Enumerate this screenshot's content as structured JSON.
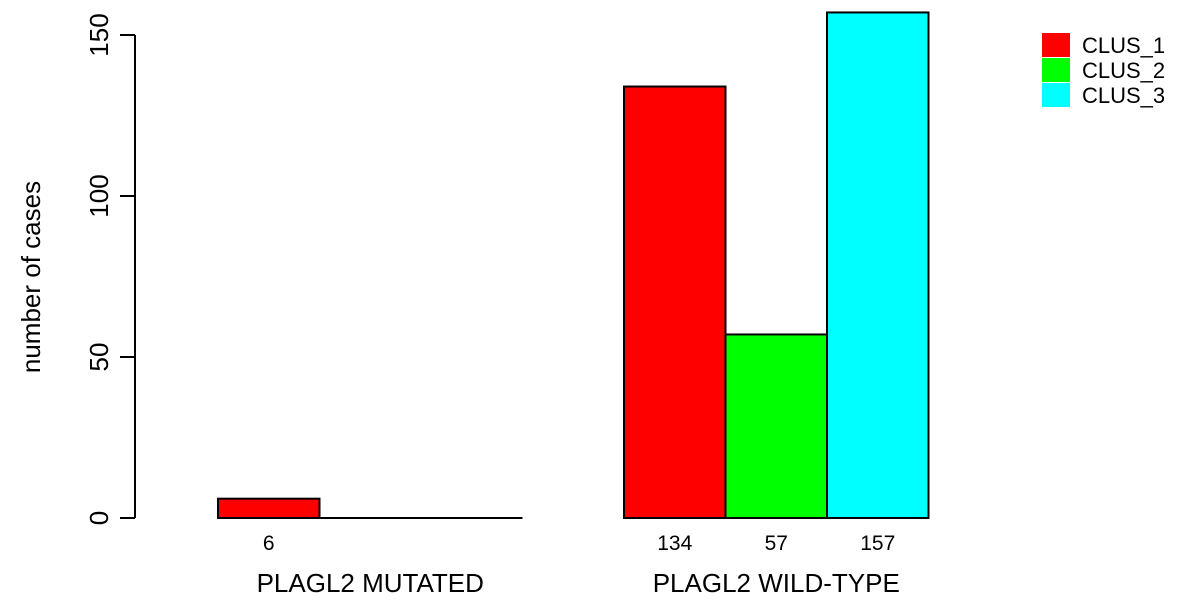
{
  "chart_data": {
    "type": "bar",
    "ylabel": "number of cases",
    "ylim": [
      0,
      150
    ],
    "yticks": [
      0,
      50,
      100,
      150
    ],
    "groups": [
      "PLAGL2 MUTATED",
      "PLAGL2 WILD-TYPE"
    ],
    "series": [
      {
        "name": "CLUS_1",
        "color": "#ff0000",
        "values": [
          6,
          134
        ]
      },
      {
        "name": "CLUS_2",
        "color": "#00ff00",
        "values": [
          0,
          57
        ]
      },
      {
        "name": "CLUS_3",
        "color": "#00ffff",
        "values": [
          0,
          157
        ]
      }
    ],
    "legend_position": "top-right"
  }
}
